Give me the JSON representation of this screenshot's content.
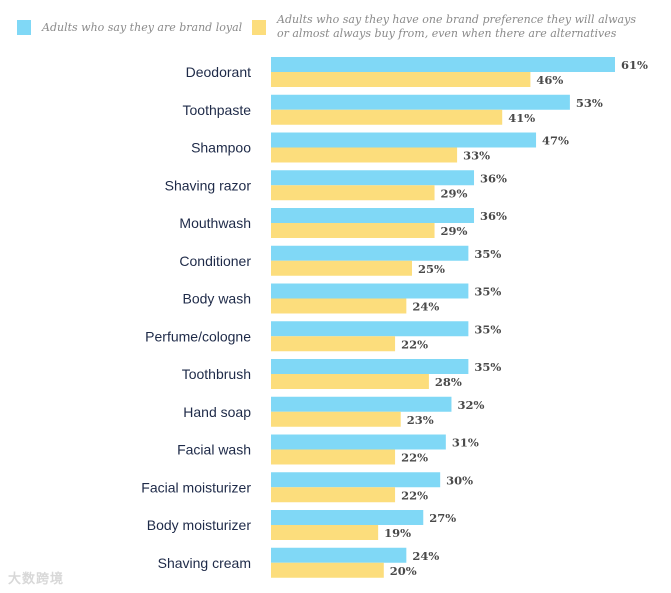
{
  "chart_data": {
    "type": "bar",
    "orientation": "horizontal",
    "title": "",
    "xlabel": "",
    "ylabel": "",
    "xlim": [
      0,
      61
    ],
    "grid": false,
    "legend_position": "top",
    "categories": [
      "Deodorant",
      "Toothpaste",
      "Shampoo",
      "Shaving razor",
      "Mouthwash",
      "Conditioner",
      "Body wash",
      "Perfume/cologne",
      "Toothbrush",
      "Hand soap",
      "Facial wash",
      "Facial moisturizer",
      "Body moisturizer",
      "Shaving cream"
    ],
    "series": [
      {
        "name": "Adults who say they are brand loyal",
        "color": "#80d8f6",
        "values": [
          61,
          53,
          47,
          36,
          36,
          35,
          35,
          35,
          35,
          32,
          31,
          30,
          27,
          24
        ]
      },
      {
        "name": "Adults who say they have one brand preference they will always or almost always buy from, even when there are alternatives",
        "color": "#fcdd7c",
        "values": [
          46,
          41,
          33,
          29,
          29,
          25,
          24,
          22,
          28,
          23,
          22,
          22,
          19,
          20
        ]
      }
    ],
    "value_suffix": "%"
  },
  "legend": {
    "item1_line1": "Adults who say they are brand loyal",
    "item2_line1": "Adults who say they have one brand preference they will always",
    "item2_line2": "or almost always buy from, even when there are alternatives"
  },
  "watermark": "大数跨境"
}
